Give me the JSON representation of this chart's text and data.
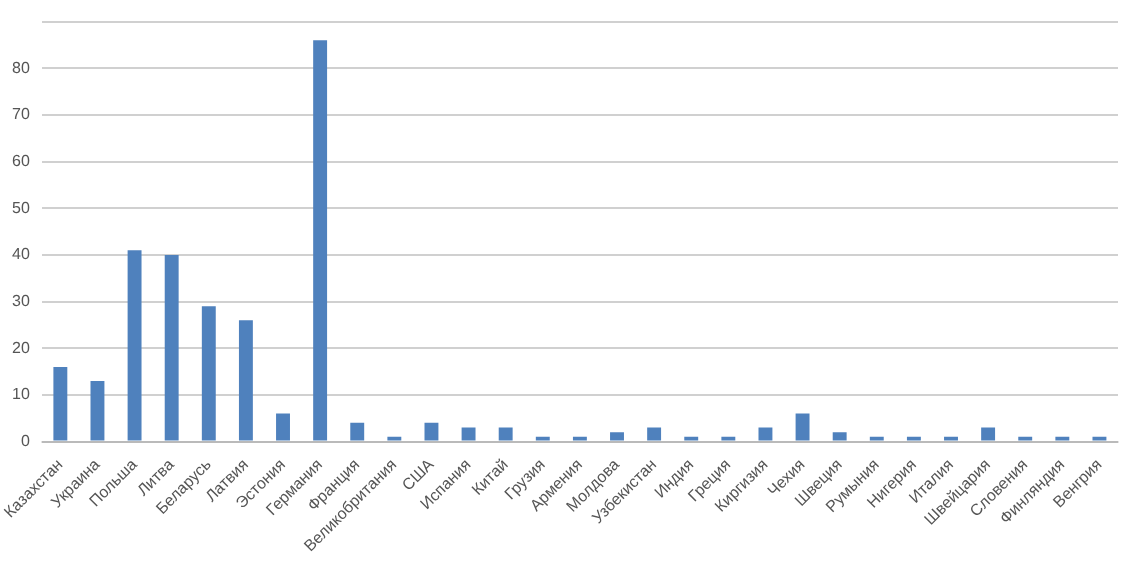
{
  "chart_data": {
    "type": "bar",
    "categories": [
      "Казахстан",
      "Украина",
      "Польша",
      "Литва",
      "Беларусь",
      "Латвия",
      "Эстония",
      "Германия",
      "Франция",
      "Великобритания",
      "США",
      "Испания",
      "Китай",
      "Грузия",
      "Армения",
      "Молдова",
      "Узбекистан",
      "Индия",
      "Греция",
      "Киргизия",
      "Чехия",
      "Швеция",
      "Румыния",
      "Нигерия",
      "Италия",
      "Швейцария",
      "Словения",
      "Финляндия",
      "Венгрия"
    ],
    "values": [
      16,
      13,
      41,
      40,
      29,
      26,
      6,
      86,
      4,
      1,
      4,
      3,
      3,
      1,
      1,
      2,
      3,
      1,
      1,
      3,
      6,
      2,
      1,
      1,
      1,
      3,
      1,
      1,
      1
    ],
    "color": "#4f81bd",
    "ylim": [
      0,
      90
    ],
    "yticks": [
      0,
      10,
      20,
      30,
      40,
      50,
      60,
      70,
      80,
      {
        "value": 90,
        "label": null
      }
    ],
    "grid": "y",
    "legend": false
  }
}
